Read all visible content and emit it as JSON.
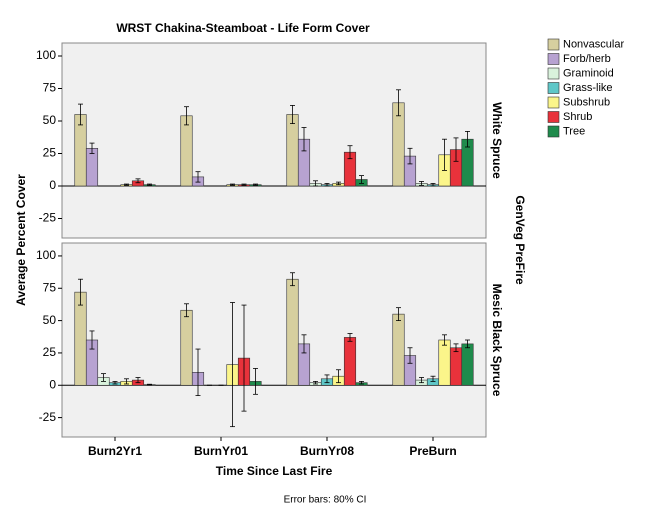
{
  "chart_data": {
    "type": "bar",
    "title": "WRST Chakina-Steamboat - Life Form Cover",
    "x_label": "Time Since Last Fire",
    "y_label": "Average Percent Cover",
    "facet_label": "GenVeg PreFire",
    "footnote": "Error bars: 80% CI",
    "categories": [
      "Burn2Yr1",
      "BurnYr01",
      "BurnYr08",
      "PreBurn"
    ],
    "ylim": [
      -40,
      110
    ],
    "yticks": [
      -25,
      0,
      25,
      50,
      75,
      100
    ],
    "series": [
      {
        "name": "Nonvascular",
        "color": "#d6cf9f"
      },
      {
        "name": "Forb/herb",
        "color": "#b7a2d1"
      },
      {
        "name": "Graminoid",
        "color": "#d9f2dc"
      },
      {
        "name": "Grass-like",
        "color": "#5fc7c8"
      },
      {
        "name": "Subshrub",
        "color": "#fbf58a"
      },
      {
        "name": "Shrub",
        "color": "#e8323b"
      },
      {
        "name": "Tree",
        "color": "#1f8b4c"
      }
    ],
    "panels": [
      {
        "label": "White Spruce",
        "series": [
          {
            "values": [
              55,
              54,
              55,
              64
            ],
            "errors": [
              8,
              7,
              7,
              10
            ]
          },
          {
            "values": [
              29,
              7,
              36,
              23
            ],
            "errors": [
              4,
              4,
              9,
              6
            ]
          },
          {
            "values": [
              0,
              0,
              2,
              2
            ],
            "errors": [
              0,
              0,
              2,
              1.5
            ]
          },
          {
            "values": [
              0,
              0,
              1,
              1
            ],
            "errors": [
              0,
              0,
              1,
              1
            ]
          },
          {
            "values": [
              1,
              1,
              2,
              24
            ],
            "errors": [
              0.5,
              0.5,
              1,
              12
            ]
          },
          {
            "values": [
              4,
              1,
              26,
              28
            ],
            "errors": [
              1.5,
              0.5,
              5,
              9
            ]
          },
          {
            "values": [
              1,
              1,
              5,
              36
            ],
            "errors": [
              0.5,
              0.5,
              3,
              6
            ]
          }
        ]
      },
      {
        "label": "Mesic Black Spruce",
        "series": [
          {
            "values": [
              72,
              58,
              82,
              55
            ],
            "errors": [
              10,
              5,
              5,
              5
            ]
          },
          {
            "values": [
              35,
              10,
              32,
              23
            ],
            "errors": [
              7,
              18,
              7,
              6
            ]
          },
          {
            "values": [
              6,
              0,
              2,
              4
            ],
            "errors": [
              3,
              0,
              1,
              2
            ]
          },
          {
            "values": [
              2,
              0,
              5,
              5
            ],
            "errors": [
              1,
              0,
              3,
              2
            ]
          },
          {
            "values": [
              3,
              16,
              7,
              35
            ],
            "errors": [
              2,
              48,
              5,
              4
            ]
          },
          {
            "values": [
              4,
              21,
              37,
              29
            ],
            "errors": [
              2,
              41,
              3,
              3
            ]
          },
          {
            "values": [
              0.5,
              3,
              2,
              32
            ],
            "errors": [
              0.3,
              10,
              1,
              3
            ]
          }
        ]
      }
    ]
  }
}
